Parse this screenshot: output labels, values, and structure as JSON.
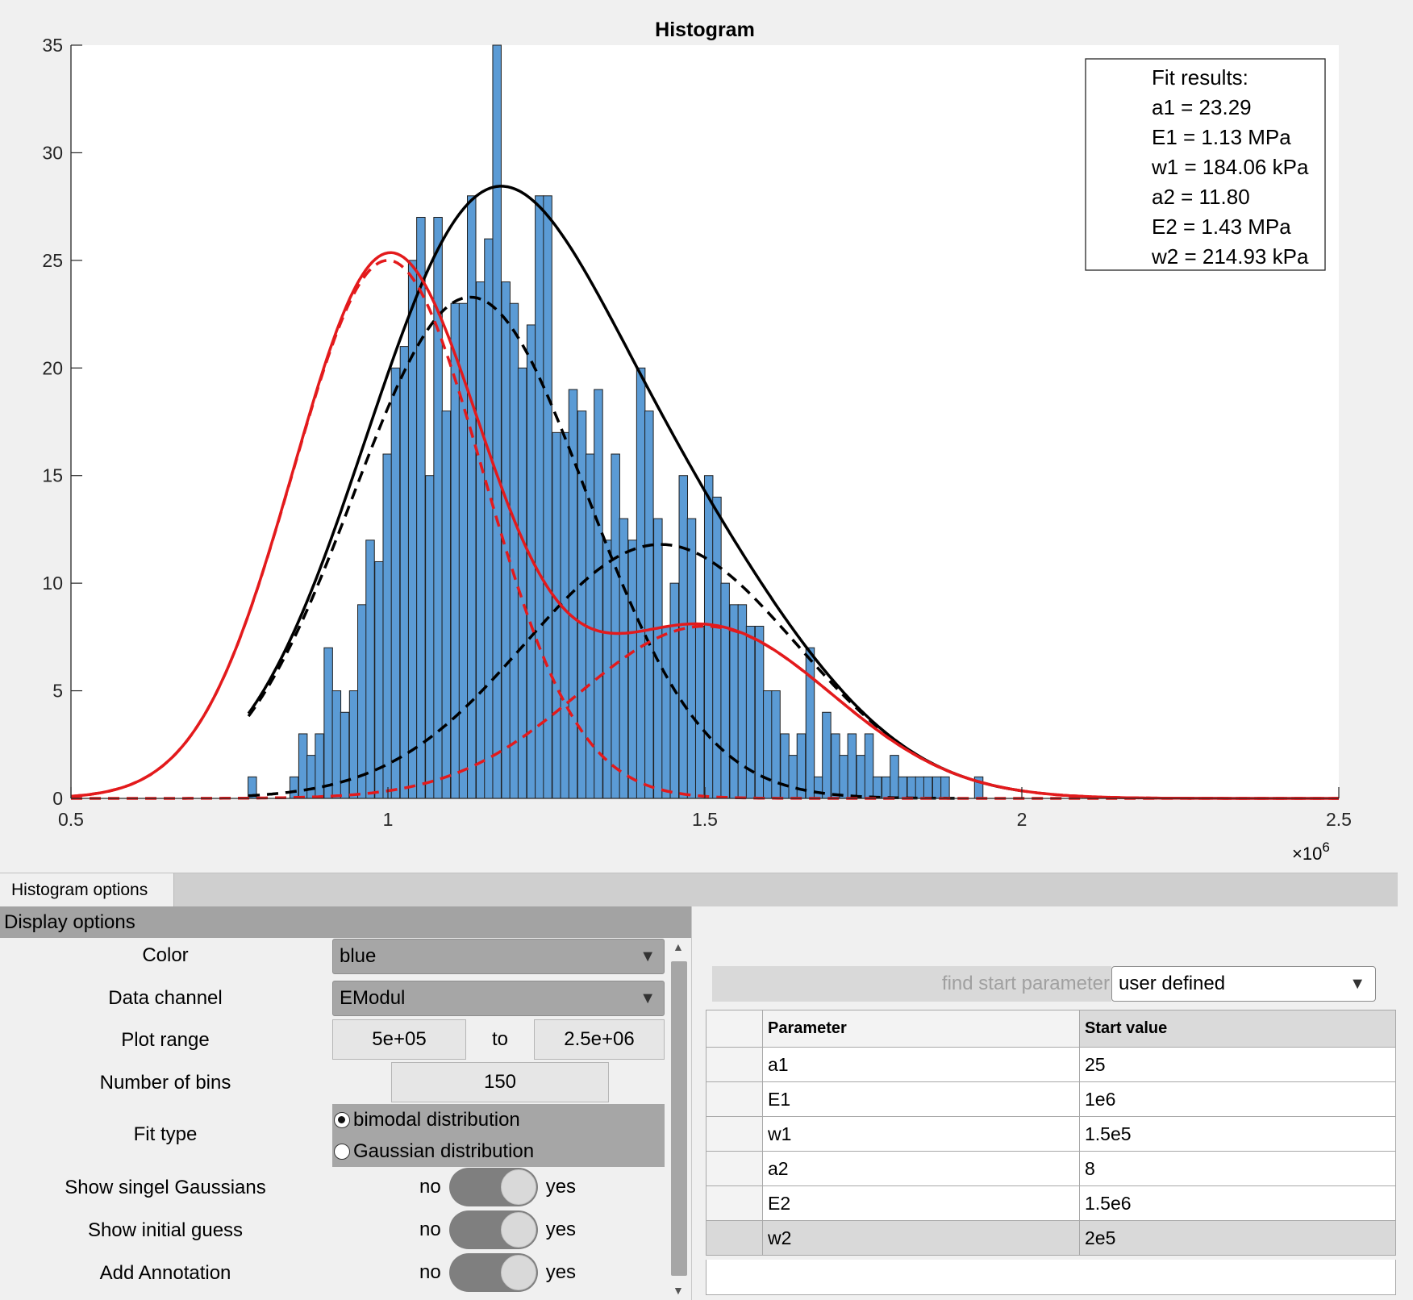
{
  "chart_data": {
    "type": "bar",
    "title": "Histogram",
    "xlabel": "",
    "ylabel": "",
    "xlim": [
      500000,
      2500000
    ],
    "ylim": [
      0,
      35
    ],
    "x_exponent_label": "×10",
    "x_exponent_power": "6",
    "x_ticks": [
      500000,
      1000000,
      1500000,
      2000000,
      2500000
    ],
    "x_tick_labels": [
      "0.5",
      "1",
      "1.5",
      "2",
      "2.5"
    ],
    "y_ticks": [
      0,
      5,
      10,
      15,
      20,
      25,
      30,
      35
    ],
    "y_tick_labels": [
      "0",
      "5",
      "10",
      "15",
      "20",
      "25",
      "30",
      "35"
    ],
    "bin_width": 13333,
    "bar_color": "#5b9bd5",
    "bins": [
      {
        "x": 786000,
        "count": 1
      },
      {
        "x": 852000,
        "count": 1
      },
      {
        "x": 866000,
        "count": 3
      },
      {
        "x": 879000,
        "count": 2
      },
      {
        "x": 892000,
        "count": 3
      },
      {
        "x": 906000,
        "count": 7
      },
      {
        "x": 919000,
        "count": 5
      },
      {
        "x": 932000,
        "count": 4
      },
      {
        "x": 946000,
        "count": 5
      },
      {
        "x": 959000,
        "count": 9
      },
      {
        "x": 972000,
        "count": 12
      },
      {
        "x": 986000,
        "count": 11
      },
      {
        "x": 999000,
        "count": 16
      },
      {
        "x": 1012000,
        "count": 20
      },
      {
        "x": 1026000,
        "count": 21
      },
      {
        "x": 1039000,
        "count": 25
      },
      {
        "x": 1052000,
        "count": 27
      },
      {
        "x": 1066000,
        "count": 15
      },
      {
        "x": 1079000,
        "count": 27
      },
      {
        "x": 1092000,
        "count": 18
      },
      {
        "x": 1106000,
        "count": 23
      },
      {
        "x": 1119000,
        "count": 23
      },
      {
        "x": 1132000,
        "count": 28
      },
      {
        "x": 1146000,
        "count": 24
      },
      {
        "x": 1159000,
        "count": 26
      },
      {
        "x": 1172000,
        "count": 35
      },
      {
        "x": 1186000,
        "count": 24
      },
      {
        "x": 1199000,
        "count": 23
      },
      {
        "x": 1212000,
        "count": 20
      },
      {
        "x": 1226000,
        "count": 22
      },
      {
        "x": 1239000,
        "count": 28
      },
      {
        "x": 1252000,
        "count": 28
      },
      {
        "x": 1266000,
        "count": 17
      },
      {
        "x": 1279000,
        "count": 17
      },
      {
        "x": 1292000,
        "count": 19
      },
      {
        "x": 1306000,
        "count": 18
      },
      {
        "x": 1319000,
        "count": 16
      },
      {
        "x": 1332000,
        "count": 19
      },
      {
        "x": 1346000,
        "count": 12
      },
      {
        "x": 1359000,
        "count": 16
      },
      {
        "x": 1372000,
        "count": 13
      },
      {
        "x": 1386000,
        "count": 12
      },
      {
        "x": 1399000,
        "count": 20
      },
      {
        "x": 1412000,
        "count": 18
      },
      {
        "x": 1426000,
        "count": 13
      },
      {
        "x": 1439000,
        "count": 8
      },
      {
        "x": 1452000,
        "count": 10
      },
      {
        "x": 1466000,
        "count": 15
      },
      {
        "x": 1479000,
        "count": 13
      },
      {
        "x": 1492000,
        "count": 8
      },
      {
        "x": 1506000,
        "count": 15
      },
      {
        "x": 1519000,
        "count": 14
      },
      {
        "x": 1532000,
        "count": 10
      },
      {
        "x": 1546000,
        "count": 9
      },
      {
        "x": 1559000,
        "count": 9
      },
      {
        "x": 1572000,
        "count": 8
      },
      {
        "x": 1586000,
        "count": 8
      },
      {
        "x": 1599000,
        "count": 5
      },
      {
        "x": 1612000,
        "count": 5
      },
      {
        "x": 1626000,
        "count": 3
      },
      {
        "x": 1639000,
        "count": 2
      },
      {
        "x": 1652000,
        "count": 3
      },
      {
        "x": 1666000,
        "count": 7
      },
      {
        "x": 1679000,
        "count": 1
      },
      {
        "x": 1692000,
        "count": 4
      },
      {
        "x": 1706000,
        "count": 3
      },
      {
        "x": 1719000,
        "count": 2
      },
      {
        "x": 1732000,
        "count": 3
      },
      {
        "x": 1746000,
        "count": 2
      },
      {
        "x": 1759000,
        "count": 3
      },
      {
        "x": 1772000,
        "count": 1
      },
      {
        "x": 1786000,
        "count": 1
      },
      {
        "x": 1799000,
        "count": 2
      },
      {
        "x": 1812000,
        "count": 1
      },
      {
        "x": 1826000,
        "count": 1
      },
      {
        "x": 1839000,
        "count": 1
      },
      {
        "x": 1852000,
        "count": 1
      },
      {
        "x": 1866000,
        "count": 1
      },
      {
        "x": 1879000,
        "count": 1
      },
      {
        "x": 1932000,
        "count": 1
      }
    ],
    "curves": [
      {
        "role": "fit-total",
        "color": "#000000",
        "dashed": false,
        "components": [
          {
            "a": 23.29,
            "E": 1130000,
            "w": 184060
          },
          {
            "a": 11.8,
            "E": 1430000,
            "w": 214930
          }
        ],
        "xrange": [
          780000,
          2000000
        ]
      },
      {
        "role": "fit-single",
        "color": "#000000",
        "dashed": true,
        "components": [
          {
            "a": 23.29,
            "E": 1130000,
            "w": 184060
          }
        ],
        "xrange": [
          780000,
          1900000
        ]
      },
      {
        "role": "fit-single",
        "color": "#000000",
        "dashed": true,
        "components": [
          {
            "a": 11.8,
            "E": 1430000,
            "w": 214930
          }
        ],
        "xrange": [
          780000,
          1900000
        ]
      },
      {
        "role": "initial-guess",
        "color": "#e31a1c",
        "dashed": false,
        "components": [
          {
            "a": 25,
            "E": 1000000,
            "w": 150000
          },
          {
            "a": 8,
            "E": 1500000,
            "w": 200000
          }
        ],
        "xrange": [
          500000,
          2500000
        ]
      },
      {
        "role": "initial-single",
        "color": "#e31a1c",
        "dashed": true,
        "components": [
          {
            "a": 25,
            "E": 1000000,
            "w": 150000
          }
        ],
        "xrange": [
          500000,
          2500000
        ]
      },
      {
        "role": "initial-single",
        "color": "#e31a1c",
        "dashed": true,
        "components": [
          {
            "a": 8,
            "E": 1500000,
            "w": 200000
          }
        ],
        "xrange": [
          500000,
          2500000
        ]
      }
    ],
    "annotation": {
      "lines": [
        "Fit results:",
        "a1 = 23.29",
        "E1 = 1.13 MPa",
        "w1 = 184.06 kPa",
        "a2 = 11.80",
        "E2 = 1.43 MPa",
        "w2 = 214.93 kPa"
      ],
      "placement": "top-right"
    }
  },
  "tabs": {
    "active": "Histogram options"
  },
  "display_options": {
    "header": "Display options",
    "color_label": "Color",
    "color_value": "blue",
    "channel_label": "Data channel",
    "channel_value": "EModul",
    "range_label": "Plot range",
    "range_from": "5e+05",
    "range_to_label": "to",
    "range_to": "2.5e+06",
    "bins_label": "Number of bins",
    "bins_value": "150",
    "fit_label": "Fit type",
    "fit_options": [
      "bimodal distribution",
      "Gaussian distribution"
    ],
    "fit_selected": "bimodal distribution",
    "switches": [
      {
        "label": "Show singel Gaussians",
        "off": "no",
        "on": "yes"
      },
      {
        "label": "Show initial guess",
        "off": "no",
        "on": "yes"
      },
      {
        "label": "Add Annotation",
        "off": "no",
        "on": "yes"
      }
    ]
  },
  "params": {
    "find_button": "find start parameter",
    "mode_value": "user defined",
    "headers": [
      "Parameter",
      "Start value"
    ],
    "rows": [
      {
        "name": "a1",
        "value": "25"
      },
      {
        "name": "E1",
        "value": "1e6"
      },
      {
        "name": "w1",
        "value": "1.5e5"
      },
      {
        "name": "a2",
        "value": "8"
      },
      {
        "name": "E2",
        "value": "1.5e6"
      },
      {
        "name": "w2",
        "value": "2e5"
      }
    ]
  }
}
